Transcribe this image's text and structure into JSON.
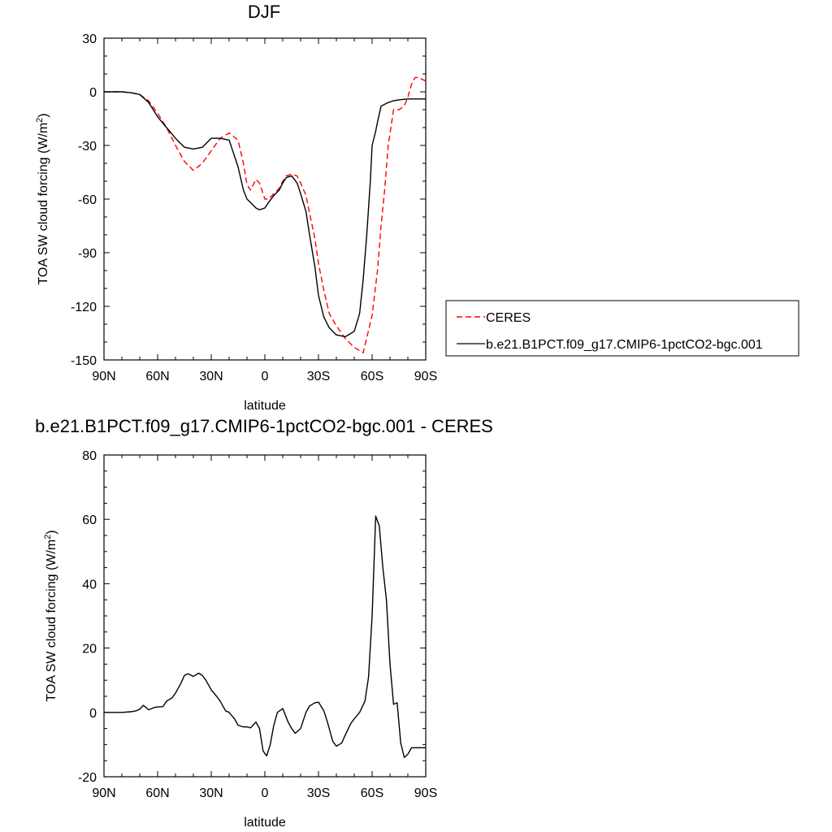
{
  "chart_data": [
    {
      "type": "line",
      "title": "DJF",
      "xlabel": "latitude",
      "ylabel": "TOA SW cloud forcing (W/m",
      "ylabel_sup": "2",
      "ylabel_close": ")",
      "xlim": [
        90,
        -90
      ],
      "ylim": [
        -150,
        30
      ],
      "x_ticks": [
        90,
        60,
        30,
        0,
        -30,
        -60,
        -90
      ],
      "x_tick_labels": [
        "90N",
        "60N",
        "30N",
        "0",
        "30S",
        "60S",
        "90S"
      ],
      "y_ticks": [
        30,
        0,
        -30,
        -60,
        -90,
        -120,
        -150
      ],
      "y_tick_labels": [
        "30",
        "0",
        "-30",
        "-60",
        "-90",
        "-120",
        "-150"
      ],
      "legend_position": "right",
      "series": [
        {
          "name": "CERES",
          "color": "#ff0000",
          "dash": "dashed",
          "x": [
            90,
            85,
            80,
            75,
            70,
            65,
            60,
            55,
            50,
            45,
            40,
            35,
            30,
            25,
            20,
            15,
            12,
            10,
            8,
            5,
            3,
            0,
            -2,
            -5,
            -8,
            -10,
            -12,
            -15,
            -18,
            -20,
            -23,
            -25,
            -28,
            -30,
            -33,
            -36,
            -40,
            -45,
            -50,
            -55,
            -60,
            -63,
            -65,
            -67,
            -69,
            -72,
            -75,
            -78,
            -80,
            -82,
            -84,
            -86,
            -88,
            -90
          ],
          "values": [
            0,
            0,
            0,
            -0.5,
            -1.5,
            -5,
            -12,
            -20,
            -30,
            -39,
            -44,
            -40,
            -33,
            -26,
            -23,
            -27,
            -40,
            -52,
            -55,
            -49,
            -51,
            -60,
            -60,
            -57,
            -54,
            -50,
            -47,
            -46,
            -47,
            -51,
            -58,
            -68,
            -82,
            -96,
            -111,
            -124,
            -131,
            -138,
            -143,
            -146,
            -125,
            -100,
            -75,
            -55,
            -30,
            -10,
            -10,
            -8,
            -3,
            4,
            8,
            8,
            7,
            6
          ]
        },
        {
          "name": "b.e21.B1PCT.f09_g17.CMIP6-1pctCO2-bgc.001",
          "color": "#000000",
          "dash": "solid",
          "x": [
            90,
            85,
            80,
            75,
            70,
            65,
            60,
            55,
            50,
            45,
            40,
            35,
            30,
            25,
            20,
            15,
            12,
            10,
            8,
            5,
            3,
            0,
            -2,
            -5,
            -8,
            -10,
            -12,
            -15,
            -18,
            -20,
            -23,
            -25,
            -28,
            -30,
            -33,
            -36,
            -40,
            -45,
            -50,
            -53,
            -55,
            -57,
            -59,
            -60,
            -62,
            -63,
            -65,
            -67,
            -69,
            -72,
            -75,
            -78,
            -80,
            -82,
            -84,
            -86,
            -88,
            -90
          ],
          "values": [
            0,
            0,
            0,
            -0.5,
            -1.5,
            -6,
            -14,
            -20,
            -26,
            -31,
            -32,
            -31,
            -26,
            -26,
            -27,
            -42,
            -55,
            -60,
            -62,
            -65,
            -66,
            -65,
            -62,
            -58,
            -55,
            -51,
            -48,
            -47,
            -51,
            -57,
            -67,
            -80,
            -98,
            -114,
            -126,
            -132,
            -136,
            -137,
            -134,
            -124,
            -105,
            -80,
            -50,
            -30,
            -22,
            -17,
            -8,
            -7,
            -6,
            -5,
            -4.5,
            -4.2,
            -4,
            -4,
            -4,
            -4,
            -4,
            -4
          ]
        }
      ]
    },
    {
      "type": "line",
      "title": "b.e21.B1PCT.f09_g17.CMIP6-1pctCO2-bgc.001 - CERES",
      "xlabel": "latitude",
      "ylabel": "TOA SW cloud forcing (W/m",
      "ylabel_sup": "2",
      "ylabel_close": ")",
      "xlim": [
        90,
        -90
      ],
      "ylim": [
        -20,
        80
      ],
      "x_ticks": [
        90,
        60,
        30,
        0,
        -30,
        -60,
        -90
      ],
      "x_tick_labels": [
        "90N",
        "60N",
        "30N",
        "0",
        "30S",
        "60S",
        "90S"
      ],
      "y_ticks": [
        80,
        60,
        40,
        20,
        0,
        -20
      ],
      "y_tick_labels": [
        "80",
        "60",
        "40",
        "20",
        "0",
        "-20"
      ],
      "series": [
        {
          "name": "b.e21.B1PCT.f09_g17.CMIP6-1pctCO2-bgc.001 - CERES",
          "color": "#000000",
          "dash": "solid",
          "x": [
            90,
            85,
            80,
            75,
            72,
            70,
            68,
            65,
            62,
            60,
            57,
            55,
            52,
            50,
            47,
            45,
            43,
            40,
            37,
            35,
            33,
            30,
            27,
            25,
            22,
            20,
            17,
            15,
            12,
            10,
            8,
            5,
            3,
            1,
            -1,
            -3,
            -5,
            -7,
            -10,
            -13,
            -15,
            -17,
            -20,
            -23,
            -25,
            -28,
            -30,
            -33,
            -35,
            -38,
            -40,
            -43,
            -45,
            -48,
            -50,
            -53,
            -56,
            -58,
            -60,
            -62,
            -64,
            -66,
            -68,
            -70,
            -72,
            -74,
            -76,
            -78,
            -80,
            -82,
            -84,
            -86,
            -88,
            -90
          ],
          "values": [
            0,
            0,
            0,
            0.2,
            0.5,
            1,
            2.2,
            0.8,
            1.5,
            1.7,
            1.8,
            3.5,
            4.5,
            6,
            9,
            11.5,
            12,
            11.2,
            12.2,
            11.5,
            10,
            7,
            5,
            3.5,
            0.5,
            0,
            -2,
            -4,
            -4.5,
            -4.5,
            -4.8,
            -3,
            -5,
            -12,
            -13.5,
            -10,
            -4,
            0,
            1.2,
            -3,
            -5,
            -6.5,
            -5,
            0,
            2,
            3,
            3.2,
            0.5,
            -3,
            -9,
            -10.5,
            -9.5,
            -7,
            -3.5,
            -2,
            0,
            3.5,
            11,
            30,
            61,
            58,
            45,
            35,
            15,
            2.5,
            3,
            -9.5,
            -14,
            -13,
            -11,
            -11,
            -11,
            -11,
            -11
          ]
        }
      ]
    }
  ]
}
